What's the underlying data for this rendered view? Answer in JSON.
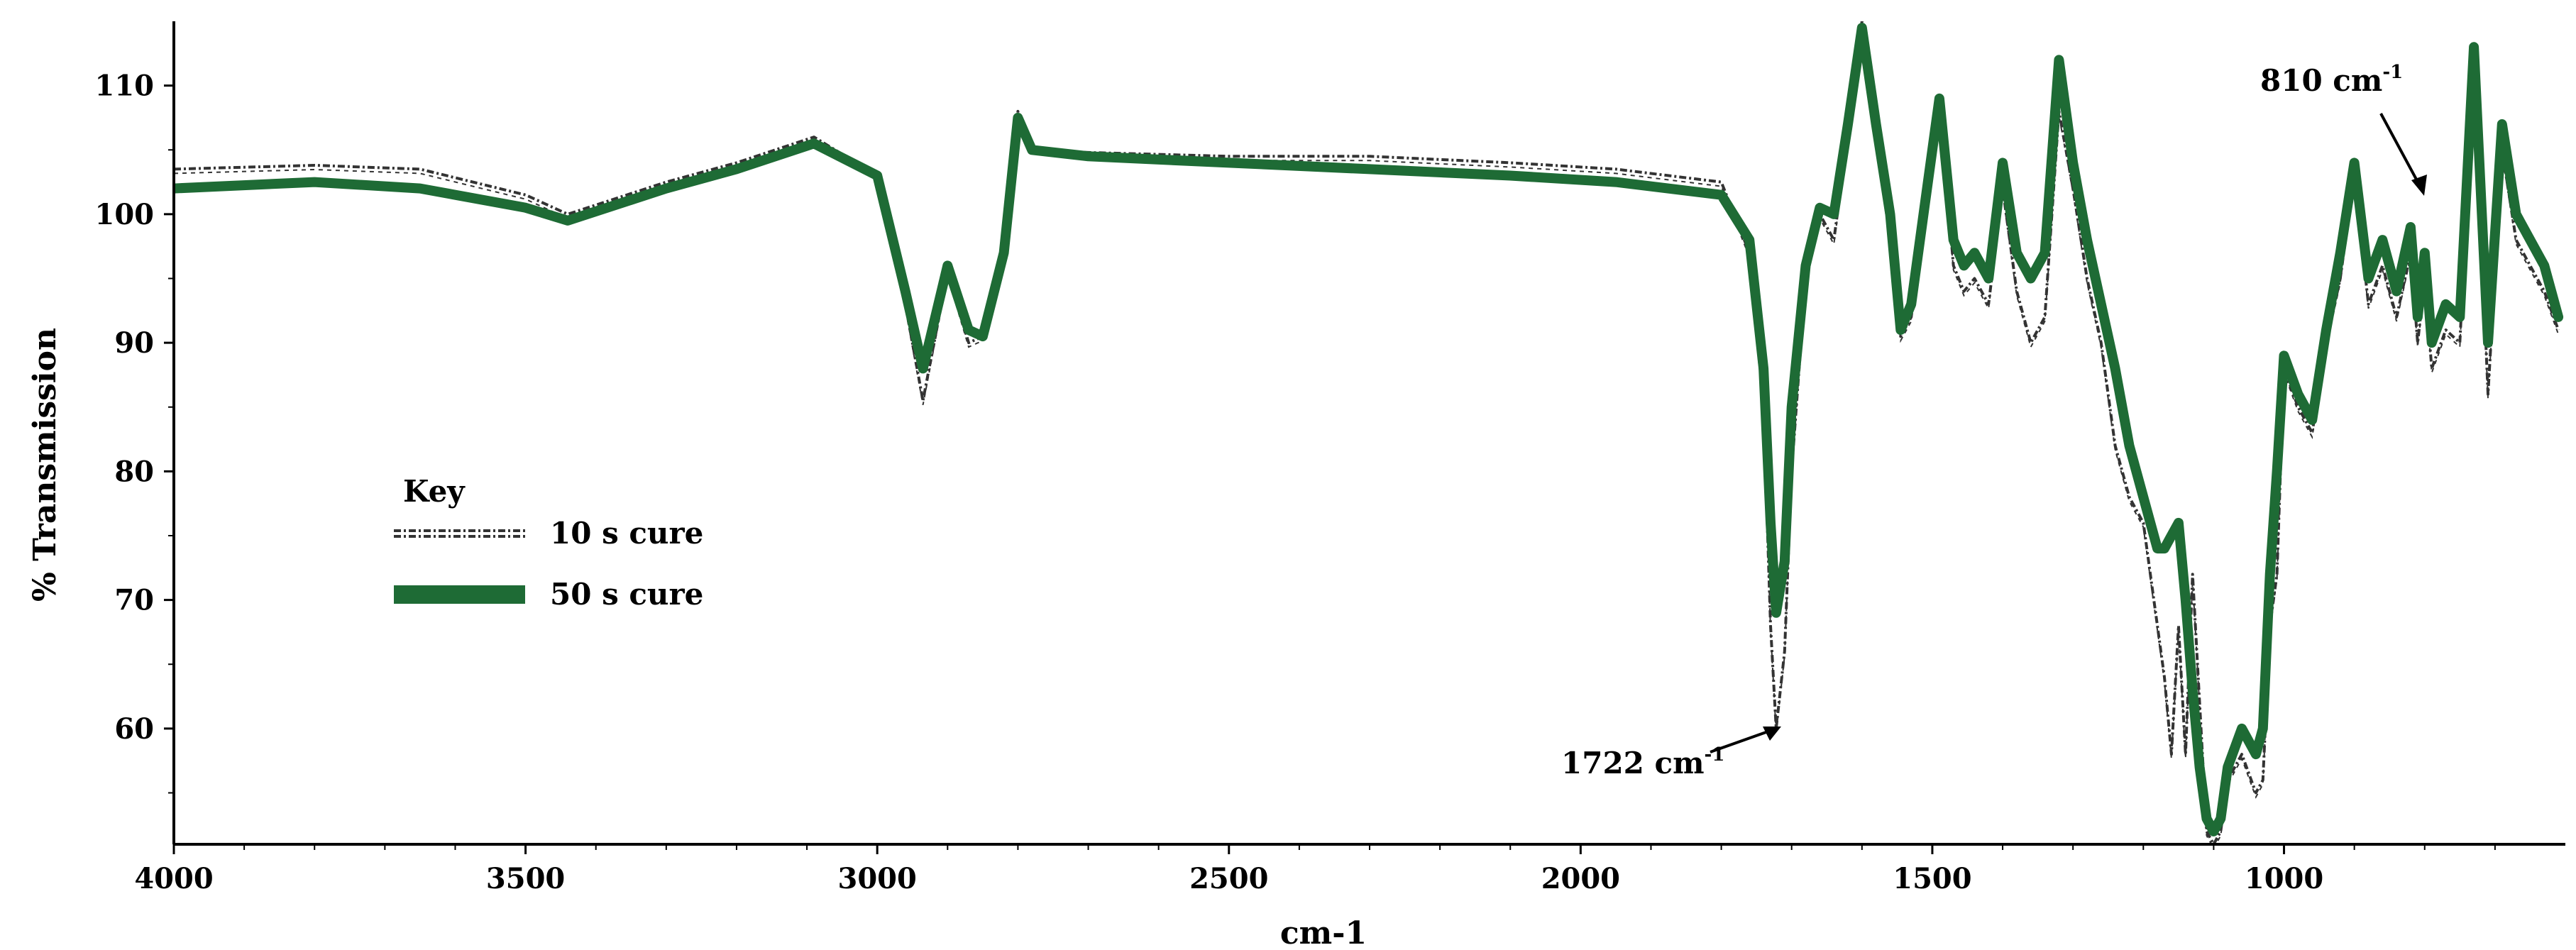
{
  "chart_data": {
    "type": "line",
    "title": "",
    "xlabel": "cm-1",
    "ylabel": "% Transmission",
    "xlim": [
      4000,
      600
    ],
    "ylim": [
      51,
      115
    ],
    "x_reversed": true,
    "x_ticks": [
      4000,
      3500,
      3000,
      2500,
      2000,
      1500,
      1000
    ],
    "y_ticks": [
      60,
      70,
      80,
      90,
      100,
      110
    ],
    "grid": false,
    "legend": {
      "title": "Key",
      "placement": "middle-left"
    },
    "series": [
      {
        "name": "10 s cure",
        "color": "#333333",
        "style": "dash-dot",
        "x": [
          4000,
          3800,
          3650,
          3500,
          3440,
          3300,
          3200,
          3090,
          3000,
          2960,
          2935,
          2900,
          2870,
          2850,
          2820,
          2800,
          2780,
          2700,
          2500,
          2300,
          2100,
          1950,
          1800,
          1760,
          1740,
          1730,
          1722,
          1710,
          1700,
          1680,
          1660,
          1640,
          1620,
          1600,
          1580,
          1560,
          1545,
          1530,
          1510,
          1490,
          1470,
          1455,
          1440,
          1420,
          1400,
          1380,
          1360,
          1340,
          1320,
          1300,
          1280,
          1260,
          1240,
          1220,
          1200,
          1180,
          1170,
          1160,
          1150,
          1140,
          1130,
          1120,
          1110,
          1100,
          1090,
          1080,
          1060,
          1040,
          1030,
          1020,
          1010,
          1000,
          980,
          960,
          940,
          920,
          900,
          880,
          860,
          840,
          820,
          810,
          800,
          790,
          770,
          750,
          730,
          710,
          690,
          670,
          650,
          630,
          610
        ],
        "y": [
          103.5,
          103.8,
          103.5,
          101.5,
          100,
          102.5,
          104,
          106,
          103,
          93,
          85.5,
          95.5,
          90,
          90.5,
          97,
          108,
          105,
          104.8,
          104.5,
          104.5,
          104,
          103.5,
          102.5,
          97,
          85,
          68,
          60,
          66,
          80,
          95,
          100,
          98,
          106,
          115,
          106,
          98,
          90.5,
          92,
          100,
          109,
          96,
          94,
          95,
          93,
          102,
          94,
          90,
          92,
          108,
          102,
          95,
          90,
          82,
          78,
          76,
          68,
          64,
          58,
          68,
          58,
          72,
          62,
          52,
          51,
          52,
          56,
          58,
          55,
          56,
          68,
          72,
          88,
          85,
          83,
          90,
          95,
          103,
          93,
          96,
          92,
          97,
          90,
          95,
          88,
          91,
          90,
          112,
          86,
          105,
          98,
          96,
          94,
          91
        ]
      },
      {
        "name": "50 s cure",
        "color": "#1e6b35",
        "style": "solid",
        "x": [
          4000,
          3800,
          3650,
          3500,
          3440,
          3300,
          3200,
          3090,
          3000,
          2960,
          2935,
          2900,
          2870,
          2850,
          2820,
          2800,
          2780,
          2700,
          2500,
          2300,
          2100,
          1950,
          1800,
          1760,
          1740,
          1730,
          1722,
          1710,
          1700,
          1680,
          1660,
          1640,
          1620,
          1600,
          1580,
          1560,
          1545,
          1530,
          1510,
          1490,
          1470,
          1455,
          1440,
          1420,
          1400,
          1380,
          1360,
          1340,
          1320,
          1300,
          1280,
          1260,
          1240,
          1220,
          1200,
          1180,
          1170,
          1160,
          1150,
          1140,
          1130,
          1120,
          1110,
          1100,
          1090,
          1080,
          1060,
          1040,
          1030,
          1020,
          1010,
          1000,
          980,
          960,
          940,
          920,
          900,
          880,
          860,
          840,
          820,
          810,
          800,
          790,
          770,
          750,
          730,
          710,
          690,
          670,
          650,
          630,
          610
        ],
        "y": [
          102,
          102.5,
          102,
          100.5,
          99.5,
          102,
          103.5,
          105.5,
          103,
          94,
          88,
          96,
          91,
          90.5,
          97,
          107.5,
          105,
          104.5,
          104,
          103.5,
          103,
          102.5,
          101.5,
          98,
          88,
          76,
          69,
          73,
          85,
          96,
          100.5,
          100,
          107,
          114.5,
          107,
          100,
          91,
          93,
          101,
          109,
          98,
          96,
          97,
          95,
          104,
          97,
          95,
          97,
          112,
          104,
          98,
          93,
          88,
          82,
          78,
          74,
          74,
          75,
          76,
          70,
          63,
          57,
          53,
          52,
          53,
          57,
          60,
          58,
          60,
          72,
          80,
          89,
          86,
          84,
          91,
          97,
          104,
          95,
          98,
          94,
          99,
          92,
          97,
          90,
          93,
          92,
          113,
          90,
          107,
          100,
          98,
          96,
          92
        ]
      }
    ],
    "annotations": [
      {
        "text": "1722 cm",
        "superscript": "-1",
        "x": 1722,
        "y": 60
      },
      {
        "text": "810 cm",
        "superscript": "-1",
        "x": 810,
        "y": 103
      }
    ]
  },
  "ui": {
    "legend_key_label": "Key",
    "legend_item_1": "10 s cure",
    "legend_item_2": "50 s cure",
    "anno_1722": "1722 cm",
    "anno_1722_sup": "-1",
    "anno_810": "810 cm",
    "anno_810_sup": "-1",
    "y_axis_title": "% Transmission",
    "x_axis_title": "cm-1"
  }
}
